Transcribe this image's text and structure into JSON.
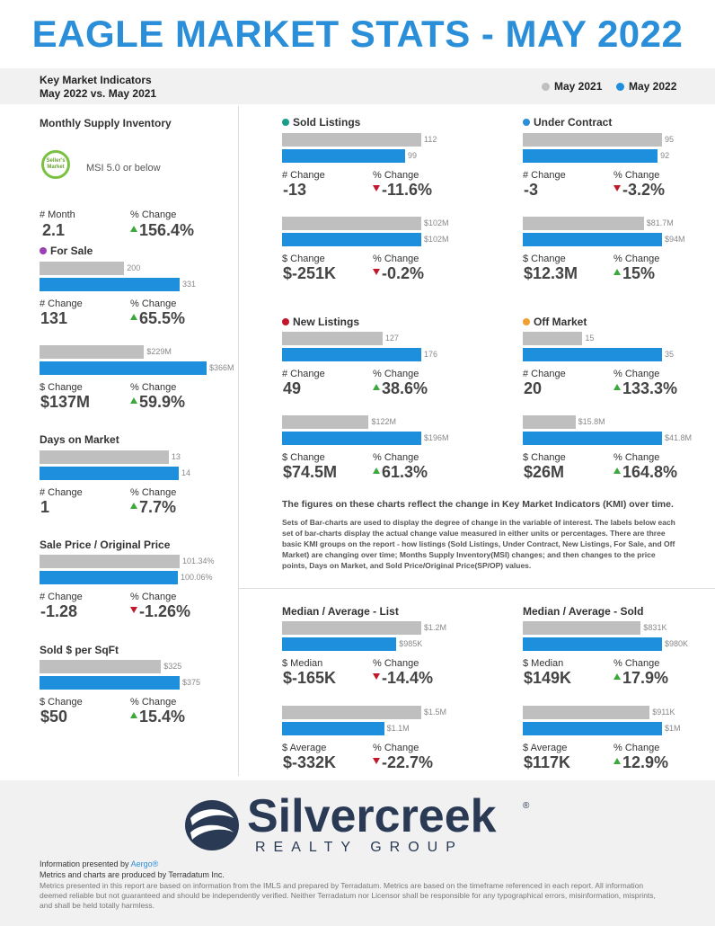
{
  "title": "EAGLE MARKET STATS - MAY 2022",
  "header": {
    "kmi_line1": "Key Market Indicators",
    "kmi_line2": "May 2022 vs. May 2021"
  },
  "legend": [
    {
      "label": "May 2021",
      "color": "#bfbfbf"
    },
    {
      "label": "May 2022",
      "color": "#1e8fdc"
    }
  ],
  "msi": {
    "title": "Monthly Supply Inventory",
    "badge_text": "Seller's Market",
    "badge_caption": "MSI 5.0 or below",
    "label1": "# Month",
    "value1": "2.1",
    "label2": "% Change",
    "value2": "156.4%"
  },
  "for_sale": {
    "title": "For Sale",
    "dot_color": "#9b3fb5",
    "count": {
      "v2021": 200,
      "v2022": 331,
      "l2021": "200",
      "l2022": "331",
      "label1": "# Change",
      "value1": "131",
      "label2": "% Change",
      "value2": "65.5%"
    },
    "dollar": {
      "v2021": 229,
      "v2022": 366,
      "l2021": "$229M",
      "l2022": "$366M",
      "label1": "$ Change",
      "value1": "$137M",
      "label2": "% Change",
      "value2": "59.9%"
    }
  },
  "days_on_market": {
    "title": "Days on Market",
    "v2021": 13,
    "v2022": 14,
    "l2021": "13",
    "l2022": "14",
    "label1": "# Change",
    "value1": "1",
    "label2": "% Change",
    "value2": "7.7%"
  },
  "sale_price": {
    "title": "Sale Price / Original Price",
    "v2021": 101.34,
    "v2022": 100.06,
    "l2021": "101.34%",
    "l2022": "100.06%",
    "label1": "# Change",
    "value1": "-1.28",
    "label2": "% Change",
    "value2": "-1.26%"
  },
  "sold_sqft": {
    "title": "Sold $ per SqFt",
    "v2021": 325,
    "v2022": 375,
    "l2021": "$325",
    "l2022": "$375",
    "label1": "$ Change",
    "value1": "$50",
    "label2": "% Change",
    "value2": "15.4%"
  },
  "sold_listings": {
    "title": "Sold Listings",
    "dot_color": "#1a9e8a",
    "count": {
      "v2021": 112,
      "v2022": 99,
      "l2021": "112",
      "l2022": "99",
      "label1": "# Change",
      "value1": "-13",
      "label2": "% Change",
      "value2": "-11.6%"
    },
    "dollar": {
      "v2021": 102,
      "v2022": 102,
      "l2021": "$102M",
      "l2022": "$102M",
      "label1": "$ Change",
      "value1": "$-251K",
      "label2": "% Change",
      "value2": "-0.2%"
    }
  },
  "under_contract": {
    "title": "Under Contract",
    "dot_color": "#2a8fd8",
    "count": {
      "v2021": 95,
      "v2022": 92,
      "l2021": "95",
      "l2022": "92",
      "label1": "# Change",
      "value1": "-3",
      "label2": "% Change",
      "value2": "-3.2%"
    },
    "dollar": {
      "v2021": 81.7,
      "v2022": 94,
      "l2021": "$81.7M",
      "l2022": "$94M",
      "label1": "$ Change",
      "value1": "$12.3M",
      "label2": "% Change",
      "value2": "15%"
    }
  },
  "new_listings": {
    "title": "New Listings",
    "dot_color": "#c0182a",
    "count": {
      "v2021": 127,
      "v2022": 176,
      "l2021": "127",
      "l2022": "176",
      "label1": "# Change",
      "value1": "49",
      "label2": "% Change",
      "value2": "38.6%"
    },
    "dollar": {
      "v2021": 122,
      "v2022": 196,
      "l2021": "$122M",
      "l2022": "$196M",
      "label1": "$ Change",
      "value1": "$74.5M",
      "label2": "% Change",
      "value2": "61.3%"
    }
  },
  "off_market": {
    "title": "Off Market",
    "dot_color": "#f0a030",
    "count": {
      "v2021": 15,
      "v2022": 35,
      "l2021": "15",
      "l2022": "35",
      "label1": "# Change",
      "value1": "20",
      "label2": "% Change",
      "value2": "133.3%"
    },
    "dollar": {
      "v2021": 15.8,
      "v2022": 41.8,
      "l2021": "$15.8M",
      "l2022": "$41.8M",
      "label1": "$ Change",
      "value1": "$26M",
      "label2": "% Change",
      "value2": "164.8%"
    }
  },
  "note": {
    "title": "The figures on these charts reflect the change in Key Market Indicators (KMI) over time.",
    "body": "Sets of Bar-charts are used to display the degree of change in the variable of interest. The labels below each set of bar-charts display the actual change value measured in either units or percentages. There are three basic KMI groups on the report - how listings (Sold Listings, Under Contract, New Listings, For Sale, and Off Market) are changing over time; Months Supply Inventory(MSI) changes; and then changes to the price points, Days on Market, and Sold Price/Original Price(SP/OP) values."
  },
  "list_prices": {
    "title": "Median / Average - List",
    "median": {
      "v2021": 1.2,
      "v2022": 0.985,
      "l2021": "$1.2M",
      "l2022": "$985K",
      "label1": "$ Median",
      "value1": "$-165K",
      "label2": "% Change",
      "value2": "-14.4%"
    },
    "average": {
      "v2021": 1.5,
      "v2022": 1.1,
      "l2021": "$1.5M",
      "l2022": "$1.1M",
      "label1": "$ Average",
      "value1": "$-332K",
      "label2": "% Change",
      "value2": "-22.7%"
    }
  },
  "sold_prices": {
    "title": "Median / Average - Sold",
    "median": {
      "v2021": 0.831,
      "v2022": 0.98,
      "l2021": "$831K",
      "l2022": "$980K",
      "label1": "$ Median",
      "value1": "$149K",
      "label2": "% Change",
      "value2": "17.9%"
    },
    "average": {
      "v2021": 0.911,
      "v2022": 1.0,
      "l2021": "$911K",
      "l2022": "$1M",
      "label1": "$ Average",
      "value1": "$117K",
      "label2": "% Change",
      "value2": "12.9%"
    }
  },
  "footer": {
    "logo_name": "Silvercreek",
    "logo_sub": "REALTY GROUP",
    "reg": "®",
    "presented_by": "Information presented by",
    "presented_link": "Aergo®",
    "produced_by": "Metrics and charts are produced by Terradatum Inc.",
    "disclaimer": "Metrics presented in this report are based on information from the IMLS and prepared by Terradatum. Metrics are based on the timeframe referenced in each report. All information deemed reliable but not guaranteed and should be independently verified. Neither Terradatum nor Licensor shall be responsible for any typographical errors, misinformation, misprints, and shall be held totally harmless."
  }
}
